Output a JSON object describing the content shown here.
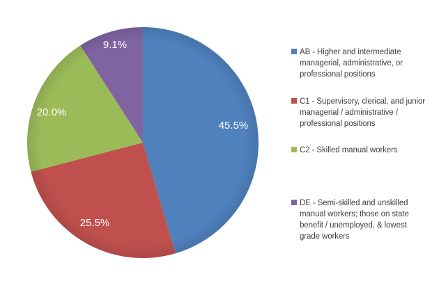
{
  "chart_data": {
    "type": "pie",
    "title": "",
    "categories": [
      "AB",
      "C1",
      "C2",
      "DE"
    ],
    "values": [
      45.5,
      25.5,
      20.0,
      9.1
    ],
    "unit": "%",
    "slice_labels": [
      "45.5%",
      "25.5%",
      "20.0%",
      "9.1%"
    ],
    "colors": [
      "#4F81BD",
      "#C0504D",
      "#9BBB59",
      "#8064A2"
    ],
    "start_angle_deg": 0,
    "direction": "clockwise",
    "data_label_color": "#FFFFFF",
    "legend_position": "right",
    "legend_text_color": "#3F3F3F",
    "background_color": "#FFFFFF",
    "legend": [
      {
        "key": "AB",
        "swatch_color": "#4F81BD",
        "label": "AB - Higher and intermediate managerial, administrative, or professional positions",
        "lines": [
          "AB - Higher and intermediate",
          "managerial, administrative, or",
          "professional positions"
        ]
      },
      {
        "key": "C1",
        "swatch_color": "#C0504D",
        "label": "C1 - Supervisory, clerical, and junior managerial / administrative / professional positions",
        "lines": [
          "C1 - Supervisory, clerical, and junior",
          "managerial / administrative /",
          "professional positions"
        ]
      },
      {
        "key": "C2",
        "swatch_color": "#9BBB59",
        "label": "C2 - Skilled manual workers",
        "lines": [
          "C2 - Skilled manual workers"
        ]
      },
      {
        "key": "DE",
        "swatch_color": "#8064A2",
        "label": "DE - Semi-skilled and unskilled manual workers; those on state benefit / unemployed, & lowest grade workers",
        "lines": [
          "DE - Semi-skilled and unskilled",
          "manual workers; those on state",
          "benefit / unemployed, & lowest",
          "grade workers"
        ]
      }
    ]
  }
}
